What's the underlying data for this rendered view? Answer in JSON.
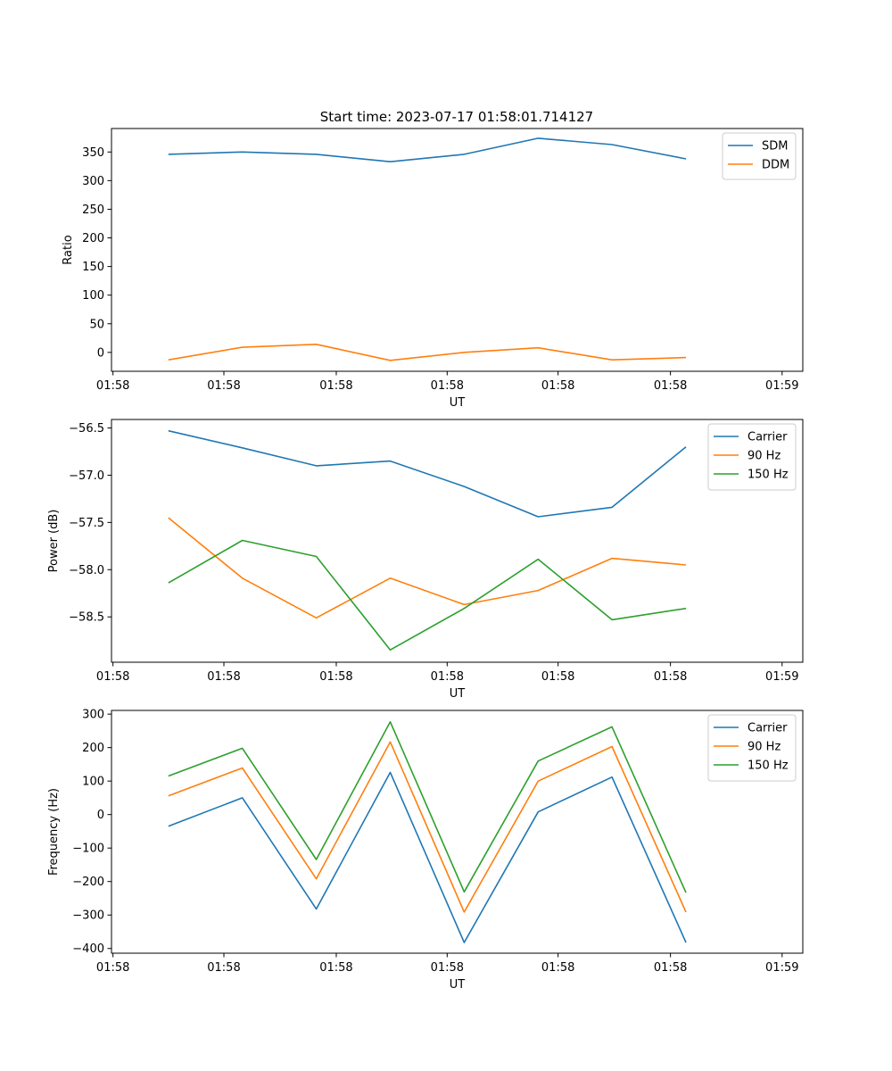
{
  "figure": {
    "title": "Start time: 2023-07-17 01:58:01.714127"
  },
  "colors": {
    "c0": "#1f77b4",
    "c1": "#ff7f0e",
    "c2": "#2ca02c"
  },
  "chart_data": [
    {
      "type": "line",
      "xlabel": "UT",
      "ylabel": "Ratio",
      "x": [
        0,
        1,
        2,
        3,
        4,
        5,
        6,
        7
      ],
      "xlim": [
        -0.77,
        8.58
      ],
      "x_ticks": [
        -0.75,
        0.75,
        2.27,
        3.77,
        5.27,
        6.79,
        8.3
      ],
      "x_tick_labels": [
        "01:58",
        "01:58",
        "01:58",
        "01:58",
        "01:58",
        "01:58",
        "01:59"
      ],
      "ylim": [
        -33,
        391
      ],
      "y_ticks": [
        0,
        50,
        100,
        150,
        200,
        250,
        300,
        350
      ],
      "y_tick_labels": [
        "0",
        "50",
        "100",
        "150",
        "200",
        "250",
        "300",
        "350"
      ],
      "legend": "top-right",
      "series": [
        {
          "name": "SDM",
          "color": "#1f77b4",
          "values": [
            346,
            350,
            346,
            333,
            346,
            374,
            363,
            338
          ]
        },
        {
          "name": "DDM",
          "color": "#ff7f0e",
          "values": [
            -13,
            9,
            14,
            -14,
            0,
            8,
            -13,
            -9
          ]
        }
      ]
    },
    {
      "type": "line",
      "xlabel": "UT",
      "ylabel": "Power (dB)",
      "x": [
        0,
        1,
        2,
        3,
        4,
        5,
        6,
        7
      ],
      "xlim": [
        -0.77,
        8.58
      ],
      "x_ticks": [
        -0.75,
        0.75,
        2.27,
        3.77,
        5.27,
        6.79,
        8.3
      ],
      "x_tick_labels": [
        "01:58",
        "01:58",
        "01:58",
        "01:58",
        "01:58",
        "01:58",
        "01:59"
      ],
      "ylim": [
        -58.98,
        -56.41
      ],
      "y_ticks": [
        -58.5,
        -58.0,
        -57.5,
        -57.0,
        -56.5
      ],
      "y_tick_labels": [
        "−58.5",
        "−58.0",
        "−57.5",
        "−57.0",
        "−56.5"
      ],
      "legend": "top-right",
      "series": [
        {
          "name": "Carrier",
          "color": "#1f77b4",
          "values": [
            -56.53,
            -56.71,
            -56.9,
            -56.85,
            -57.12,
            -57.44,
            -57.34,
            -56.7
          ]
        },
        {
          "name": "90 Hz",
          "color": "#ff7f0e",
          "values": [
            -57.45,
            -58.09,
            -58.51,
            -58.09,
            -58.37,
            -58.22,
            -57.88,
            -57.95
          ]
        },
        {
          "name": "150 Hz",
          "color": "#2ca02c",
          "values": [
            -58.14,
            -57.69,
            -57.86,
            -58.85,
            -58.41,
            -57.89,
            -58.53,
            -58.41
          ]
        }
      ]
    },
    {
      "type": "line",
      "xlabel": "UT",
      "ylabel": "Frequency (Hz)",
      "x": [
        0,
        1,
        2,
        3,
        4,
        5,
        6,
        7
      ],
      "xlim": [
        -0.77,
        8.58
      ],
      "x_ticks": [
        -0.75,
        0.75,
        2.27,
        3.77,
        5.27,
        6.79,
        8.3
      ],
      "x_tick_labels": [
        "01:58",
        "01:58",
        "01:58",
        "01:58",
        "01:58",
        "01:58",
        "01:59"
      ],
      "ylim": [
        -414,
        311
      ],
      "y_ticks": [
        -400,
        -300,
        -200,
        -100,
        0,
        100,
        200,
        300
      ],
      "y_tick_labels": [
        "−400",
        "−300",
        "−200",
        "−100",
        "0",
        "100",
        "200",
        "300"
      ],
      "legend": "top-right",
      "series": [
        {
          "name": "Carrier",
          "color": "#1f77b4",
          "values": [
            -35,
            50,
            -282,
            126,
            -382,
            8,
            112,
            -382
          ]
        },
        {
          "name": "90 Hz",
          "color": "#ff7f0e",
          "values": [
            56,
            139,
            -192,
            217,
            -291,
            100,
            203,
            -291
          ]
        },
        {
          "name": "150 Hz",
          "color": "#2ca02c",
          "values": [
            115,
            198,
            -134,
            277,
            -231,
            160,
            262,
            -233
          ]
        }
      ]
    }
  ]
}
